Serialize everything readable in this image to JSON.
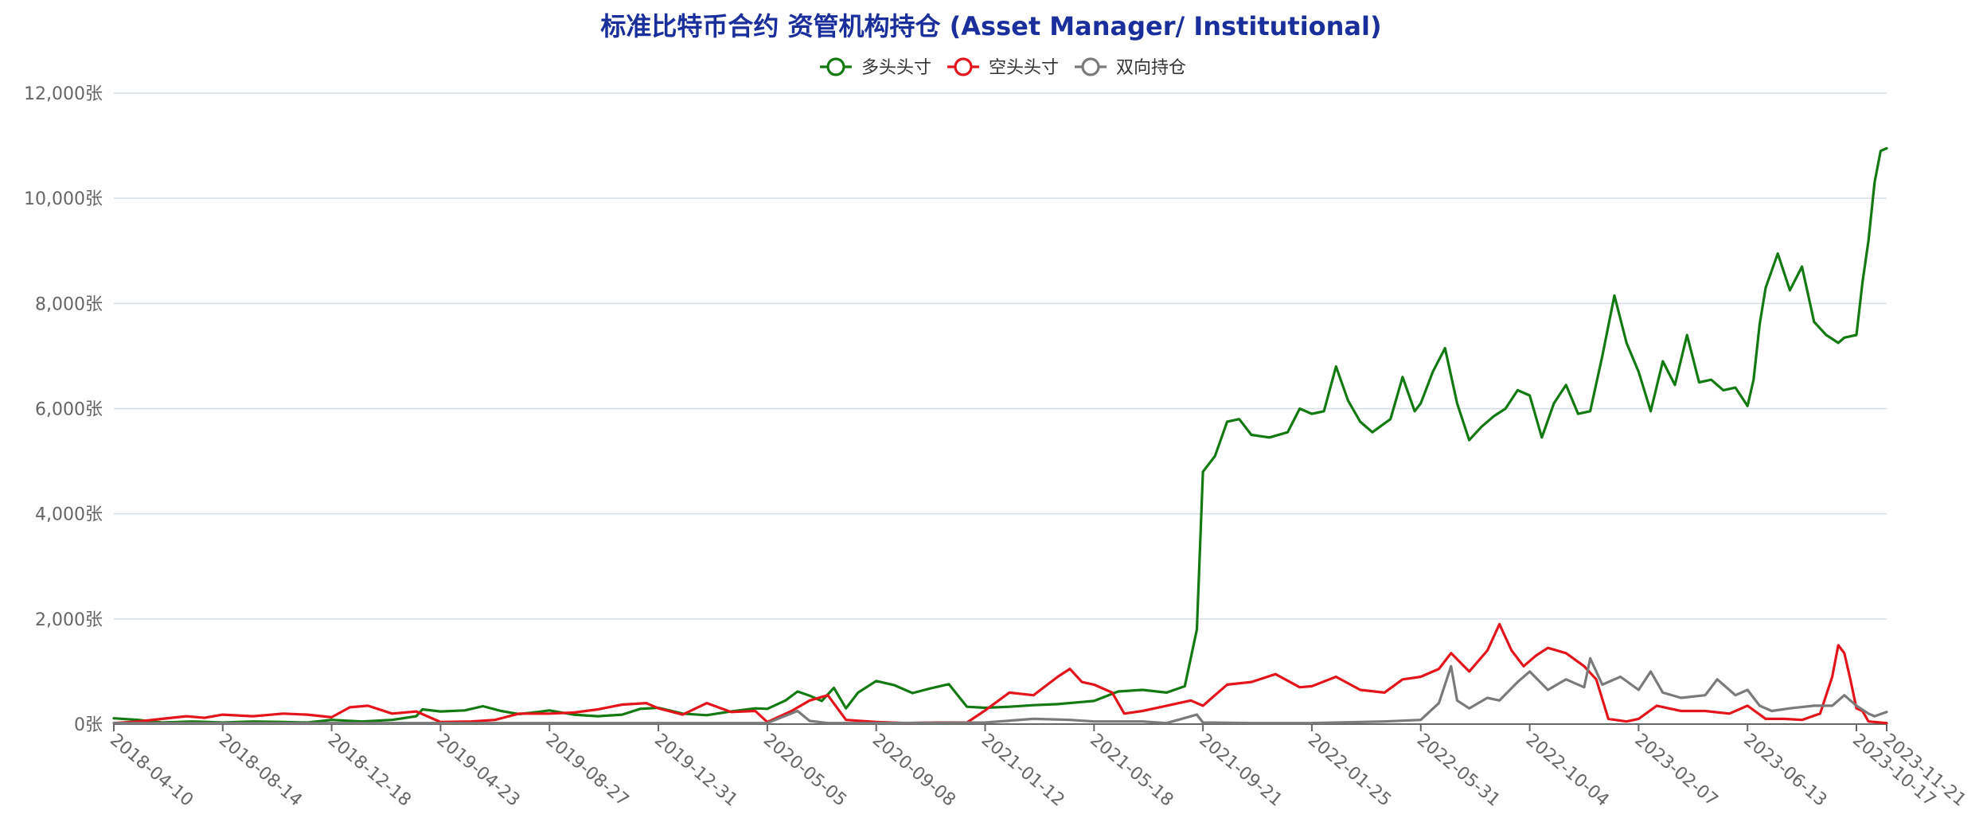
{
  "chart_data": {
    "type": "line",
    "title": "标准比特币合约 资管机构持仓 (Asset Manager/ Institutional)",
    "ylim": [
      0,
      12000
    ],
    "grid": true,
    "legend_position": "top-center",
    "colors": {
      "title": "#1a2f9c",
      "long": "#137a12",
      "short": "#e3141c",
      "spread": "#7a7a7a",
      "grid": "#d6dfe6",
      "axis": "#666666"
    },
    "y_ticks": [
      {
        "value": 0,
        "label": "0张"
      },
      {
        "value": 2000,
        "label": "2,000张"
      },
      {
        "value": 4000,
        "label": "4,000张"
      },
      {
        "value": 6000,
        "label": "6,000张"
      },
      {
        "value": 8000,
        "label": "8,000张"
      },
      {
        "value": 10000,
        "label": "10,000张"
      },
      {
        "value": 12000,
        "label": "12,000张"
      }
    ],
    "x_tick_labels": [
      "2018-04-10",
      "2018-08-14",
      "2018-12-18",
      "2019-04-23",
      "2019-08-27",
      "2019-12-31",
      "2020-05-05",
      "2020-09-08",
      "2021-01-12",
      "2021-05-18",
      "2021-09-21",
      "2022-01-25",
      "2022-05-31",
      "2022-10-04",
      "2023-02-07",
      "2023-06-13",
      "2023-10-17",
      "2023-11-21"
    ],
    "x_tick_dates": [
      "2018-04-10",
      "2018-08-14",
      "2018-12-18",
      "2019-04-23",
      "2019-08-27",
      "2019-12-31",
      "2020-05-05",
      "2020-09-08",
      "2021-01-12",
      "2021-05-18",
      "2021-09-21",
      "2022-01-25",
      "2022-05-31",
      "2022-10-04",
      "2023-02-07",
      "2023-06-13",
      "2023-10-17",
      "2023-11-21"
    ],
    "series": [
      {
        "name": "多头头寸",
        "color": "#137a12",
        "points": [
          [
            "2018-04-10",
            110
          ],
          [
            "2018-05-08",
            80
          ],
          [
            "2018-06-05",
            30
          ],
          [
            "2018-07-10",
            50
          ],
          [
            "2018-08-14",
            30
          ],
          [
            "2018-09-18",
            50
          ],
          [
            "2018-10-23",
            40
          ],
          [
            "2018-11-20",
            30
          ],
          [
            "2018-12-18",
            80
          ],
          [
            "2019-01-22",
            50
          ],
          [
            "2019-02-26",
            80
          ],
          [
            "2019-03-26",
            150
          ],
          [
            "2019-04-02",
            280
          ],
          [
            "2019-04-23",
            240
          ],
          [
            "2019-05-21",
            260
          ],
          [
            "2019-06-11",
            340
          ],
          [
            "2019-07-02",
            250
          ],
          [
            "2019-07-23",
            190
          ],
          [
            "2019-08-13",
            230
          ],
          [
            "2019-08-27",
            260
          ],
          [
            "2019-09-24",
            180
          ],
          [
            "2019-10-22",
            150
          ],
          [
            "2019-11-19",
            180
          ],
          [
            "2019-12-10",
            290
          ],
          [
            "2019-12-31",
            310
          ],
          [
            "2020-01-28",
            200
          ],
          [
            "2020-02-25",
            170
          ],
          [
            "2020-03-24",
            240
          ],
          [
            "2020-04-21",
            300
          ],
          [
            "2020-05-05",
            290
          ],
          [
            "2020-05-26",
            450
          ],
          [
            "2020-06-09",
            620
          ],
          [
            "2020-06-23",
            540
          ],
          [
            "2020-07-07",
            440
          ],
          [
            "2020-07-21",
            690
          ],
          [
            "2020-08-04",
            300
          ],
          [
            "2020-08-18",
            600
          ],
          [
            "2020-09-08",
            820
          ],
          [
            "2020-09-29",
            740
          ],
          [
            "2020-10-20",
            590
          ],
          [
            "2020-11-10",
            680
          ],
          [
            "2020-12-01",
            760
          ],
          [
            "2020-12-22",
            330
          ],
          [
            "2021-01-12",
            310
          ],
          [
            "2021-02-09",
            330
          ],
          [
            "2021-03-09",
            360
          ],
          [
            "2021-04-06",
            380
          ],
          [
            "2021-05-04",
            420
          ],
          [
            "2021-05-18",
            440
          ],
          [
            "2021-06-15",
            620
          ],
          [
            "2021-07-13",
            650
          ],
          [
            "2021-08-10",
            600
          ],
          [
            "2021-08-31",
            720
          ],
          [
            "2021-09-14",
            1800
          ],
          [
            "2021-09-21",
            4800
          ],
          [
            "2021-10-05",
            5100
          ],
          [
            "2021-10-19",
            5750
          ],
          [
            "2021-11-02",
            5800
          ],
          [
            "2021-11-16",
            5500
          ],
          [
            "2021-12-07",
            5450
          ],
          [
            "2021-12-28",
            5550
          ],
          [
            "2022-01-11",
            6000
          ],
          [
            "2022-01-25",
            5900
          ],
          [
            "2022-02-08",
            5950
          ],
          [
            "2022-02-22",
            6800
          ],
          [
            "2022-03-08",
            6150
          ],
          [
            "2022-03-22",
            5750
          ],
          [
            "2022-04-05",
            5550
          ],
          [
            "2022-04-26",
            5800
          ],
          [
            "2022-05-10",
            6600
          ],
          [
            "2022-05-24",
            5950
          ],
          [
            "2022-05-31",
            6100
          ],
          [
            "2022-06-14",
            6700
          ],
          [
            "2022-06-28",
            7150
          ],
          [
            "2022-07-12",
            6100
          ],
          [
            "2022-07-26",
            5400
          ],
          [
            "2022-08-09",
            5650
          ],
          [
            "2022-08-23",
            5850
          ],
          [
            "2022-09-06",
            6000
          ],
          [
            "2022-09-20",
            6350
          ],
          [
            "2022-10-04",
            6250
          ],
          [
            "2022-10-18",
            5450
          ],
          [
            "2022-11-01",
            6100
          ],
          [
            "2022-11-15",
            6450
          ],
          [
            "2022-11-29",
            5900
          ],
          [
            "2022-12-13",
            5950
          ],
          [
            "2022-12-27",
            7000
          ],
          [
            "2023-01-10",
            8150
          ],
          [
            "2023-01-24",
            7250
          ],
          [
            "2023-02-07",
            6700
          ],
          [
            "2023-02-21",
            5950
          ],
          [
            "2023-03-07",
            6900
          ],
          [
            "2023-03-21",
            6450
          ],
          [
            "2023-04-04",
            7400
          ],
          [
            "2023-04-18",
            6500
          ],
          [
            "2023-05-02",
            6550
          ],
          [
            "2023-05-16",
            6350
          ],
          [
            "2023-05-30",
            6400
          ],
          [
            "2023-06-13",
            6050
          ],
          [
            "2023-06-20",
            6550
          ],
          [
            "2023-06-27",
            7600
          ],
          [
            "2023-07-04",
            8300
          ],
          [
            "2023-07-18",
            8950
          ],
          [
            "2023-08-01",
            8250
          ],
          [
            "2023-08-15",
            8700
          ],
          [
            "2023-08-29",
            7650
          ],
          [
            "2023-09-12",
            7400
          ],
          [
            "2023-09-26",
            7250
          ],
          [
            "2023-10-03",
            7350
          ],
          [
            "2023-10-17",
            7400
          ],
          [
            "2023-10-24",
            8400
          ],
          [
            "2023-10-31",
            9200
          ],
          [
            "2023-11-07",
            10300
          ],
          [
            "2023-11-14",
            10900
          ],
          [
            "2023-11-21",
            10950
          ]
        ]
      },
      {
        "name": "空头头寸",
        "color": "#e3141c",
        "points": [
          [
            "2018-04-10",
            20
          ],
          [
            "2018-05-08",
            50
          ],
          [
            "2018-06-05",
            100
          ],
          [
            "2018-07-03",
            150
          ],
          [
            "2018-07-24",
            120
          ],
          [
            "2018-08-14",
            180
          ],
          [
            "2018-09-18",
            150
          ],
          [
            "2018-10-23",
            200
          ],
          [
            "2018-11-20",
            180
          ],
          [
            "2018-12-18",
            130
          ],
          [
            "2019-01-08",
            320
          ],
          [
            "2019-01-29",
            350
          ],
          [
            "2019-02-26",
            200
          ],
          [
            "2019-03-26",
            240
          ],
          [
            "2019-04-23",
            40
          ],
          [
            "2019-05-28",
            50
          ],
          [
            "2019-06-25",
            80
          ],
          [
            "2019-07-23",
            200
          ],
          [
            "2019-08-27",
            200
          ],
          [
            "2019-09-24",
            220
          ],
          [
            "2019-10-22",
            280
          ],
          [
            "2019-11-19",
            370
          ],
          [
            "2019-12-17",
            400
          ],
          [
            "2019-12-31",
            300
          ],
          [
            "2020-01-28",
            180
          ],
          [
            "2020-02-25",
            400
          ],
          [
            "2020-03-24",
            230
          ],
          [
            "2020-04-21",
            250
          ],
          [
            "2020-05-05",
            40
          ],
          [
            "2020-06-02",
            250
          ],
          [
            "2020-06-23",
            450
          ],
          [
            "2020-07-14",
            550
          ],
          [
            "2020-08-04",
            80
          ],
          [
            "2020-09-08",
            40
          ],
          [
            "2020-10-13",
            20
          ],
          [
            "2020-11-17",
            30
          ],
          [
            "2020-12-22",
            30
          ],
          [
            "2021-01-12",
            260
          ],
          [
            "2021-02-09",
            600
          ],
          [
            "2021-03-09",
            550
          ],
          [
            "2021-04-06",
            900
          ],
          [
            "2021-04-20",
            1050
          ],
          [
            "2021-05-04",
            800
          ],
          [
            "2021-05-18",
            750
          ],
          [
            "2021-06-08",
            600
          ],
          [
            "2021-06-22",
            200
          ],
          [
            "2021-07-13",
            250
          ],
          [
            "2021-08-10",
            350
          ],
          [
            "2021-09-07",
            450
          ],
          [
            "2021-09-21",
            350
          ],
          [
            "2021-10-19",
            750
          ],
          [
            "2021-11-16",
            800
          ],
          [
            "2021-12-14",
            950
          ],
          [
            "2022-01-11",
            700
          ],
          [
            "2022-01-25",
            720
          ],
          [
            "2022-02-22",
            900
          ],
          [
            "2022-03-22",
            650
          ],
          [
            "2022-04-19",
            600
          ],
          [
            "2022-05-10",
            850
          ],
          [
            "2022-05-31",
            900
          ],
          [
            "2022-06-21",
            1050
          ],
          [
            "2022-07-05",
            1350
          ],
          [
            "2022-07-26",
            1000
          ],
          [
            "2022-08-16",
            1400
          ],
          [
            "2022-08-30",
            1900
          ],
          [
            "2022-09-13",
            1400
          ],
          [
            "2022-09-27",
            1100
          ],
          [
            "2022-10-11",
            1300
          ],
          [
            "2022-10-25",
            1450
          ],
          [
            "2022-11-15",
            1350
          ],
          [
            "2022-12-06",
            1100
          ],
          [
            "2022-12-20",
            850
          ],
          [
            "2023-01-03",
            100
          ],
          [
            "2023-01-24",
            50
          ],
          [
            "2023-02-07",
            100
          ],
          [
            "2023-02-28",
            350
          ],
          [
            "2023-03-28",
            250
          ],
          [
            "2023-04-25",
            250
          ],
          [
            "2023-05-23",
            200
          ],
          [
            "2023-06-13",
            350
          ],
          [
            "2023-07-04",
            100
          ],
          [
            "2023-07-25",
            100
          ],
          [
            "2023-08-15",
            80
          ],
          [
            "2023-09-05",
            200
          ],
          [
            "2023-09-19",
            900
          ],
          [
            "2023-09-26",
            1500
          ],
          [
            "2023-10-03",
            1350
          ],
          [
            "2023-10-10",
            850
          ],
          [
            "2023-10-17",
            300
          ],
          [
            "2023-10-24",
            250
          ],
          [
            "2023-10-31",
            50
          ],
          [
            "2023-11-21",
            20
          ]
        ]
      },
      {
        "name": "双向持仓",
        "color": "#7a7a7a",
        "points": [
          [
            "2018-04-10",
            20
          ],
          [
            "2018-12-18",
            20
          ],
          [
            "2019-08-27",
            20
          ],
          [
            "2019-12-31",
            20
          ],
          [
            "2020-05-05",
            20
          ],
          [
            "2020-06-09",
            250
          ],
          [
            "2020-06-23",
            60
          ],
          [
            "2020-07-14",
            20
          ],
          [
            "2020-09-08",
            20
          ],
          [
            "2021-01-12",
            30
          ],
          [
            "2021-03-09",
            100
          ],
          [
            "2021-04-20",
            80
          ],
          [
            "2021-05-18",
            50
          ],
          [
            "2021-07-13",
            50
          ],
          [
            "2021-08-10",
            20
          ],
          [
            "2021-09-14",
            180
          ],
          [
            "2021-09-21",
            30
          ],
          [
            "2021-11-16",
            20
          ],
          [
            "2022-01-25",
            20
          ],
          [
            "2022-04-19",
            50
          ],
          [
            "2022-05-31",
            80
          ],
          [
            "2022-06-21",
            400
          ],
          [
            "2022-07-05",
            1100
          ],
          [
            "2022-07-12",
            450
          ],
          [
            "2022-07-26",
            300
          ],
          [
            "2022-08-16",
            500
          ],
          [
            "2022-08-30",
            450
          ],
          [
            "2022-09-20",
            800
          ],
          [
            "2022-10-04",
            1000
          ],
          [
            "2022-10-25",
            650
          ],
          [
            "2022-11-15",
            850
          ],
          [
            "2022-12-06",
            700
          ],
          [
            "2022-12-13",
            1250
          ],
          [
            "2022-12-27",
            750
          ],
          [
            "2023-01-17",
            900
          ],
          [
            "2023-02-07",
            650
          ],
          [
            "2023-02-21",
            1000
          ],
          [
            "2023-03-07",
            600
          ],
          [
            "2023-03-28",
            500
          ],
          [
            "2023-04-25",
            550
          ],
          [
            "2023-05-09",
            850
          ],
          [
            "2023-05-30",
            550
          ],
          [
            "2023-06-13",
            650
          ],
          [
            "2023-06-27",
            350
          ],
          [
            "2023-07-11",
            250
          ],
          [
            "2023-08-01",
            300
          ],
          [
            "2023-08-29",
            350
          ],
          [
            "2023-09-19",
            350
          ],
          [
            "2023-10-03",
            550
          ],
          [
            "2023-10-17",
            350
          ],
          [
            "2023-10-31",
            200
          ],
          [
            "2023-11-07",
            150
          ],
          [
            "2023-11-21",
            230
          ]
        ]
      }
    ]
  }
}
